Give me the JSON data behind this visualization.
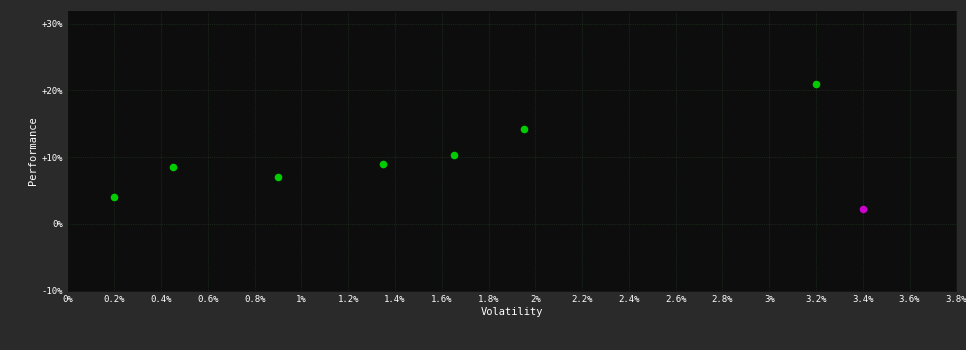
{
  "green_points": [
    [
      0.002,
      0.04
    ],
    [
      0.0045,
      0.085
    ],
    [
      0.009,
      0.07
    ],
    [
      0.0135,
      0.09
    ],
    [
      0.0165,
      0.103
    ],
    [
      0.0195,
      0.143
    ],
    [
      0.032,
      0.21
    ]
  ],
  "magenta_points": [
    [
      0.034,
      0.022
    ]
  ],
  "green_color": "#00cc00",
  "magenta_color": "#cc00cc",
  "plot_bg_color": "#0d0d0d",
  "grid_color": "#2d4a2d",
  "text_color": "#ffffff",
  "xlabel": "Volatility",
  "ylabel": "Performance",
  "xlim": [
    0,
    0.038
  ],
  "ylim": [
    -0.1,
    0.32
  ],
  "xticks": [
    0.0,
    0.002,
    0.004,
    0.006,
    0.008,
    0.01,
    0.012,
    0.014,
    0.016,
    0.018,
    0.02,
    0.022,
    0.024,
    0.026,
    0.028,
    0.03,
    0.032,
    0.034,
    0.036,
    0.038
  ],
  "xtick_labels": [
    "0%",
    "0.2%",
    "0.4%",
    "0.6%",
    "0.8%",
    "1%",
    "1.2%",
    "1.4%",
    "1.6%",
    "1.8%",
    "2%",
    "2.2%",
    "2.4%",
    "2.6%",
    "2.8%",
    "3%",
    "3.2%",
    "3.4%",
    "3.6%",
    "3.8%"
  ],
  "yticks": [
    -0.1,
    0.0,
    0.1,
    0.2,
    0.3
  ],
  "ytick_labels": [
    "-10%",
    "0%",
    "+10%",
    "+20%",
    "+30%"
  ],
  "marker_size": 30,
  "outer_bg_color": "#2a2a2a"
}
